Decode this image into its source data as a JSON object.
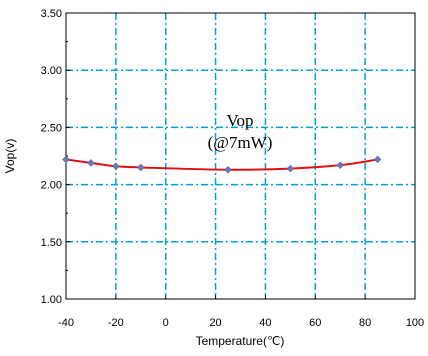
{
  "chart_data": {
    "type": "line",
    "title": "",
    "xlabel": "Temperature(℃)",
    "ylabel": "Vop(v)",
    "xlim": [
      -40,
      100
    ],
    "ylim": [
      1.0,
      3.5
    ],
    "x_ticks": [
      "-40",
      "-20",
      "0",
      "20",
      "40",
      "60",
      "80",
      "100"
    ],
    "y_ticks": [
      "1.00",
      "1.50",
      "2.00",
      "2.50",
      "3.00",
      "3.50"
    ],
    "grid": true,
    "grid_color": "#00a0e0",
    "line_color": "#e01010",
    "marker_color": "#6a78b8",
    "annotation": [
      "Vop",
      "(@7mW)"
    ],
    "series": [
      {
        "x": [
          -40,
          -30,
          -20,
          -10,
          25,
          50,
          70,
          85
        ],
        "y": [
          2.22,
          2.19,
          2.16,
          2.15,
          2.13,
          2.14,
          2.17,
          2.22
        ]
      }
    ]
  }
}
